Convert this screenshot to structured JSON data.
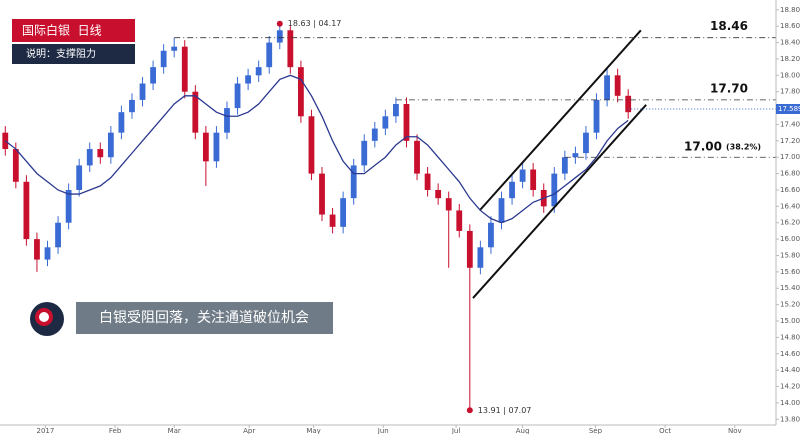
{
  "chart_data": {
    "type": "candlestick",
    "title": "国际白银  日线",
    "subtitle": "说明：支撑阻力",
    "headline": "白银受阻回落，关注通道破位机会",
    "categories": [
      null,
      null,
      null,
      null,
      null,
      null,
      null,
      null,
      null,
      null,
      null,
      null,
      null,
      null,
      null,
      null,
      null,
      null,
      null,
      null,
      null,
      null,
      null,
      null,
      null,
      null,
      null,
      null,
      null,
      null,
      null,
      null,
      null,
      null,
      null,
      null,
      null,
      null,
      null,
      null,
      null,
      null,
      null,
      null,
      null,
      null,
      null,
      null,
      null,
      null,
      null,
      null,
      null,
      null,
      null,
      null,
      null,
      null,
      null,
      null
    ],
    "open": [
      17.3,
      17.1,
      16.7,
      16.0,
      15.75,
      15.9,
      16.2,
      16.6,
      16.9,
      17.1,
      17.0,
      17.3,
      17.55,
      17.7,
      17.9,
      18.1,
      18.3,
      18.35,
      17.8,
      17.3,
      16.95,
      17.3,
      17.6,
      17.9,
      18.0,
      18.1,
      18.4,
      18.55,
      18.1,
      17.5,
      16.8,
      16.3,
      16.15,
      16.5,
      16.9,
      17.2,
      17.35,
      17.5,
      17.65,
      17.2,
      16.8,
      16.6,
      16.5,
      16.35,
      16.1,
      15.65,
      15.9,
      16.2,
      16.5,
      16.7,
      16.85,
      16.6,
      16.4,
      16.8,
      17.0,
      17.05,
      17.3,
      17.7,
      18.0,
      17.75
    ],
    "high": [
      17.38,
      17.18,
      16.78,
      16.08,
      15.98,
      16.28,
      16.68,
      16.98,
      17.18,
      17.18,
      17.38,
      17.63,
      17.78,
      17.98,
      18.18,
      18.38,
      18.46,
      18.43,
      17.88,
      17.38,
      17.38,
      17.68,
      17.98,
      18.08,
      18.18,
      18.48,
      18.63,
      18.6,
      18.18,
      17.58,
      16.88,
      16.38,
      16.58,
      16.98,
      17.28,
      17.43,
      17.58,
      17.73,
      17.73,
      17.28,
      16.88,
      16.68,
      16.58,
      16.43,
      16.18,
      15.98,
      16.28,
      16.58,
      16.78,
      16.93,
      16.93,
      16.68,
      16.88,
      17.08,
      17.13,
      17.38,
      17.78,
      18.1,
      18.08,
      17.83
    ],
    "low": [
      17.02,
      16.62,
      15.92,
      15.6,
      15.67,
      15.82,
      16.12,
      16.52,
      16.82,
      16.92,
      16.92,
      17.22,
      17.47,
      17.62,
      17.82,
      18.02,
      18.22,
      17.72,
      17.22,
      16.65,
      16.87,
      17.22,
      17.52,
      17.82,
      17.92,
      18.02,
      18.32,
      18.02,
      17.42,
      16.72,
      16.22,
      16.07,
      16.07,
      16.42,
      16.82,
      17.12,
      17.27,
      17.42,
      17.12,
      16.72,
      16.52,
      16.42,
      15.65,
      16.02,
      13.91,
      15.57,
      15.82,
      16.12,
      16.42,
      16.62,
      16.52,
      16.32,
      16.32,
      16.72,
      16.92,
      16.97,
      17.22,
      17.62,
      17.67,
      17.47
    ],
    "close": [
      17.1,
      16.7,
      16.0,
      15.75,
      15.9,
      16.2,
      16.6,
      16.9,
      17.1,
      17.0,
      17.3,
      17.55,
      17.7,
      17.9,
      18.1,
      18.3,
      18.35,
      17.8,
      17.3,
      16.95,
      17.3,
      17.6,
      17.9,
      18.0,
      18.1,
      18.4,
      18.55,
      18.1,
      17.5,
      16.8,
      16.3,
      16.15,
      16.5,
      16.9,
      17.2,
      17.35,
      17.5,
      17.65,
      17.2,
      16.8,
      16.6,
      16.5,
      16.35,
      16.1,
      15.65,
      15.9,
      16.2,
      16.5,
      16.7,
      16.85,
      16.6,
      16.4,
      16.8,
      17.0,
      17.05,
      17.3,
      17.7,
      18.0,
      17.75,
      17.55
    ],
    "up_color": "#3a6ad4",
    "down_color": "#c8102e",
    "ma": {
      "color": "#2b3990",
      "values": [
        17.2,
        17.1,
        16.95,
        16.8,
        16.7,
        16.6,
        16.55,
        16.55,
        16.6,
        16.65,
        16.75,
        16.9,
        17.05,
        17.2,
        17.35,
        17.5,
        17.65,
        17.75,
        17.75,
        17.65,
        17.55,
        17.5,
        17.5,
        17.55,
        17.65,
        17.8,
        17.95,
        18.0,
        17.95,
        17.75,
        17.5,
        17.2,
        16.95,
        16.8,
        16.8,
        16.9,
        17.0,
        17.15,
        17.25,
        17.25,
        17.15,
        17.0,
        16.85,
        16.7,
        16.5,
        16.35,
        16.25,
        16.2,
        16.25,
        16.35,
        16.45,
        16.5,
        16.55,
        16.65,
        16.75,
        16.85,
        17.0,
        17.2,
        17.35,
        17.45
      ]
    },
    "levels": [
      {
        "value": 18.46,
        "label": "18.46"
      },
      {
        "value": 17.7,
        "label": "17.70"
      },
      {
        "value": 17.0,
        "label": "17.00",
        "note": "(38.2%)"
      }
    ],
    "trendlines": [
      {
        "x": [
          45,
          60.2
        ],
        "y": [
          16.36,
          18.55
        ]
      },
      {
        "x": [
          44.3,
          60.7
        ],
        "y": [
          15.28,
          17.64
        ]
      }
    ],
    "annotations": [
      {
        "text": "18.63 | 04.17",
        "value": 18.63,
        "x": 26
      },
      {
        "text": "13.91 | 07.07",
        "value": 13.91,
        "x": 44
      }
    ],
    "last_price": 17.589,
    "xlim": [
      -0.5,
      73
    ],
    "xticks": [
      {
        "value": 3.8,
        "label": "2017"
      },
      {
        "value": 10.4,
        "label": "Feb"
      },
      {
        "value": 16,
        "label": "Mar"
      },
      {
        "value": 23.1,
        "label": "Apr"
      },
      {
        "value": 29.2,
        "label": "May"
      },
      {
        "value": 35.8,
        "label": "Jun"
      },
      {
        "value": 42.7,
        "label": "Jul"
      },
      {
        "value": 49,
        "label": "Aug"
      },
      {
        "value": 55.9,
        "label": "Sep"
      },
      {
        "value": 62.5,
        "label": "Oct"
      },
      {
        "value": 69.1,
        "label": "Nov"
      }
    ],
    "ylim": [
      13.73,
      18.92
    ],
    "yticks": [
      {
        "value": 13.8,
        "label": "13.800"
      },
      {
        "value": 14.0,
        "label": "14.000"
      },
      {
        "value": 14.2,
        "label": "14.200"
      },
      {
        "value": 14.4,
        "label": "14.400"
      },
      {
        "value": 14.6,
        "label": "14.600"
      },
      {
        "value": 14.8,
        "label": "14.800"
      },
      {
        "value": 15.0,
        "label": "15.000"
      },
      {
        "value": 15.2,
        "label": "15.200"
      },
      {
        "value": 15.4,
        "label": "15.400"
      },
      {
        "value": 15.6,
        "label": "15.600"
      },
      {
        "value": 15.8,
        "label": "15.800"
      },
      {
        "value": 16.0,
        "label": "16.000"
      },
      {
        "value": 16.2,
        "label": "16.200"
      },
      {
        "value": 16.4,
        "label": "16.400"
      },
      {
        "value": 16.6,
        "label": "16.600"
      },
      {
        "value": 16.8,
        "label": "16.800"
      },
      {
        "value": 17.0,
        "label": "17.000"
      },
      {
        "value": 17.2,
        "label": "17.200"
      },
      {
        "value": 17.4,
        "label": "17.400"
      },
      {
        "value": 17.6,
        "label": "17.600"
      },
      {
        "value": 17.8,
        "label": "17.800"
      },
      {
        "value": 18.0,
        "label": "18.000"
      },
      {
        "value": 18.2,
        "label": "18.200"
      },
      {
        "value": 18.4,
        "label": "18.400"
      },
      {
        "value": 18.6,
        "label": "18.600"
      },
      {
        "value": 18.8,
        "label": "18.800"
      }
    ]
  }
}
